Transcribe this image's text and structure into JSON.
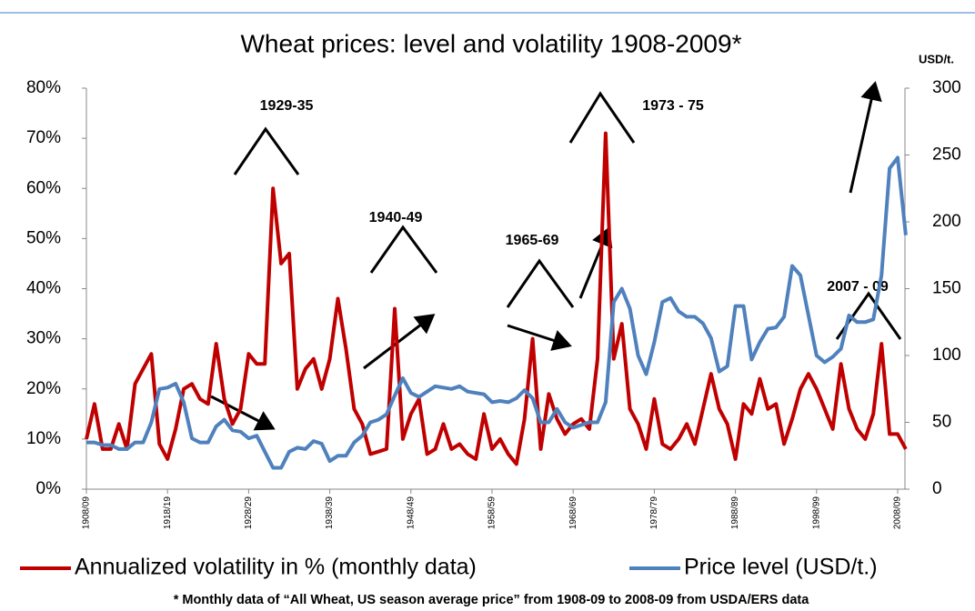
{
  "chart_data": {
    "type": "line",
    "title": "Wheat prices: level and volatility 1908-2009*",
    "y2_label": "USD/t.",
    "footnote": "* Monthly data of “All Wheat, US season average price” from 1908-09 to 2008-09 from USDA/ERS  data",
    "annotations": [
      "1929-35",
      "1940-49",
      "1965-69",
      "1973 - 75",
      "2007 - 09"
    ],
    "categories": [
      "1908/09",
      null,
      null,
      null,
      null,
      null,
      null,
      null,
      null,
      null,
      "1918/19",
      null,
      null,
      null,
      null,
      null,
      null,
      null,
      null,
      null,
      "1928/29",
      null,
      null,
      null,
      null,
      null,
      null,
      null,
      null,
      null,
      "1938/39",
      null,
      null,
      null,
      null,
      null,
      null,
      null,
      null,
      null,
      "1948/49",
      null,
      null,
      null,
      null,
      null,
      null,
      null,
      null,
      null,
      "1958/59",
      null,
      null,
      null,
      null,
      null,
      null,
      null,
      null,
      null,
      "1968/69",
      null,
      null,
      null,
      null,
      null,
      null,
      null,
      null,
      null,
      "1978/79",
      null,
      null,
      null,
      null,
      null,
      null,
      null,
      null,
      null,
      "1988/89",
      null,
      null,
      null,
      null,
      null,
      null,
      null,
      null,
      null,
      "1998/99",
      null,
      null,
      null,
      null,
      null,
      null,
      null,
      null,
      null,
      "2008/09",
      null
    ],
    "series": [
      {
        "name": "Annualized volatility in % (monthly data)",
        "color": "#c00000",
        "values": [
          10,
          17,
          8,
          8,
          13,
          8,
          21,
          24,
          27,
          9,
          6,
          12,
          20,
          21,
          18,
          17,
          29,
          18,
          13,
          16,
          27,
          25,
          25,
          60,
          45,
          47,
          20,
          24,
          26,
          20,
          26,
          38,
          28,
          16,
          13,
          7,
          7.5,
          8,
          36,
          10,
          15,
          18,
          7,
          8,
          13,
          8,
          9,
          7,
          6,
          15,
          8,
          10,
          7,
          5,
          14,
          30,
          8,
          19,
          14,
          11,
          13,
          14,
          12,
          26,
          71,
          26,
          33,
          16,
          13,
          8,
          18,
          9,
          8,
          10,
          13,
          9,
          16,
          23,
          16,
          13,
          6,
          17,
          15,
          22,
          16,
          17,
          9,
          14,
          20,
          23,
          20,
          16,
          12,
          25,
          16,
          12,
          10,
          15,
          29,
          11,
          11,
          8
        ]
      },
      {
        "name": "Price level (USD/t.)",
        "color": "#4f81bd",
        "axis": "y2",
        "values": [
          35,
          35,
          33,
          33,
          30,
          30,
          35,
          35,
          50,
          75,
          76,
          79,
          65,
          38,
          35,
          35,
          47,
          52,
          44,
          43,
          38,
          40,
          28,
          16,
          16,
          28,
          31,
          30,
          36,
          34,
          21,
          25,
          25,
          35,
          40,
          50,
          52,
          56,
          70,
          83,
          72,
          69,
          73,
          77,
          76,
          75,
          77,
          73,
          72,
          71,
          65,
          66,
          65,
          68,
          74,
          68,
          50,
          50,
          60,
          50,
          46,
          48,
          50,
          50,
          65,
          140,
          150,
          135,
          100,
          86,
          110,
          140,
          143,
          133,
          129,
          129,
          124,
          113,
          88,
          92,
          137,
          137,
          97,
          110,
          120,
          121,
          129,
          167,
          160,
          130,
          100,
          95,
          99,
          105,
          130,
          125,
          125,
          127,
          160,
          240,
          248,
          190
        ]
      }
    ],
    "ylim": [
      0,
      80
    ],
    "yticks": [
      {
        "value": 0,
        "label": "0%"
      },
      {
        "value": 10,
        "label": "10%"
      },
      {
        "value": 20,
        "label": "20%"
      },
      {
        "value": 30,
        "label": "30%"
      },
      {
        "value": 40,
        "label": "40%"
      },
      {
        "value": 50,
        "label": "50%"
      },
      {
        "value": 60,
        "label": "60%"
      },
      {
        "value": 70,
        "label": "70%"
      },
      {
        "value": 80,
        "label": "80%"
      }
    ],
    "y2lim": [
      0,
      300
    ],
    "y2ticks": [
      0,
      50,
      100,
      150,
      200,
      250,
      300
    ],
    "grid": false
  }
}
